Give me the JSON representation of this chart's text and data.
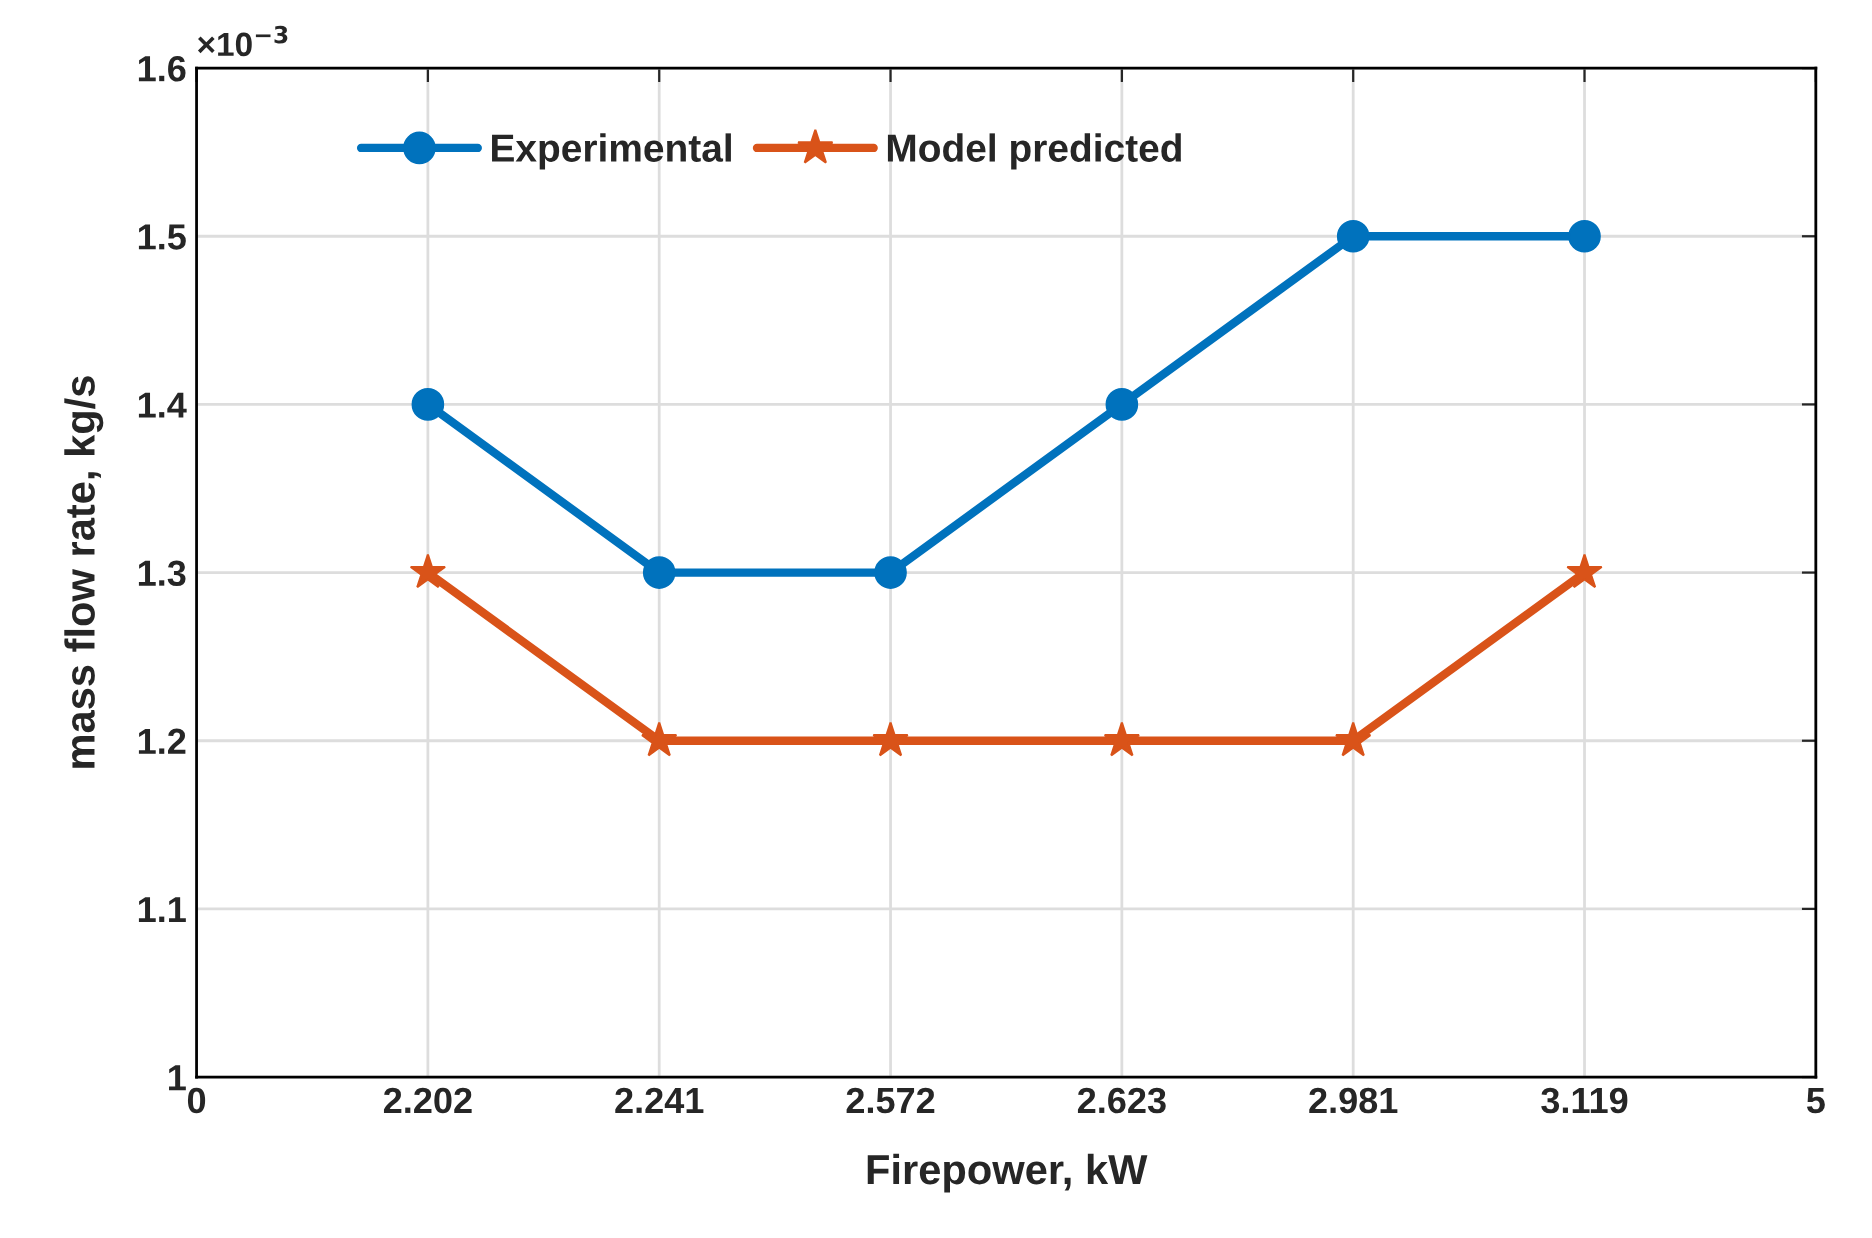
{
  "chart_data": {
    "type": "line",
    "xlabel": "Firepower, kW",
    "ylabel": "mass flow rate, kg/s",
    "categories": [
      "0",
      "2.202",
      "2.241",
      "2.572",
      "2.623",
      "2.981",
      "3.119",
      "5"
    ],
    "series": [
      {
        "name": "Experimental",
        "color": "#0072bd",
        "marker": "circle",
        "values": [
          null,
          1.4,
          1.3,
          1.3,
          1.4,
          1.5,
          1.5,
          null
        ]
      },
      {
        "name": "Model predicted",
        "color": "#d95319",
        "marker": "star",
        "values": [
          null,
          1.3,
          1.2,
          1.2,
          1.2,
          1.2,
          1.3,
          null
        ]
      }
    ],
    "ylim": [
      1,
      1.6
    ],
    "yticks": [
      1,
      1.1,
      1.2,
      1.3,
      1.4,
      1.5,
      1.6
    ],
    "annotations": [
      "×10$^{−3}$"
    ],
    "grid": true,
    "legend": "top left",
    "line_style": "solid"
  }
}
